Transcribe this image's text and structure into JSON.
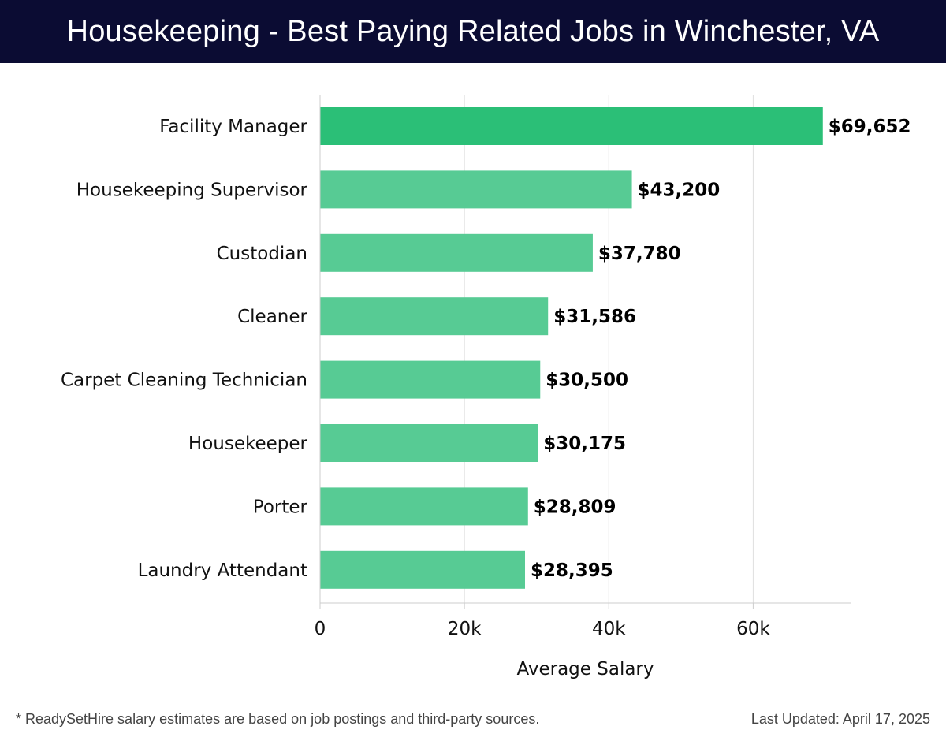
{
  "header": {
    "title": "Housekeeping - Best Paying Related Jobs in Winchester, VA"
  },
  "chart_data": {
    "type": "bar",
    "orientation": "horizontal",
    "categories": [
      "Facility Manager",
      "Housekeeping Supervisor",
      "Custodian",
      "Cleaner",
      "Carpet Cleaning Technician",
      "Housekeeper",
      "Porter",
      "Laundry Attendant"
    ],
    "values": [
      69652,
      43200,
      37780,
      31586,
      30500,
      30175,
      28809,
      28395
    ],
    "value_labels": [
      "$69,652",
      "$43,200",
      "$37,780",
      "$31,586",
      "$30,500",
      "$30,175",
      "$28,809",
      "$28,395"
    ],
    "xlabel": "Average Salary",
    "ylabel": "",
    "xlim": [
      0,
      73500
    ],
    "x_ticks": [
      0,
      20000,
      40000,
      60000
    ],
    "x_tick_labels": [
      "0",
      "20k",
      "40k",
      "60k"
    ],
    "grid": "vertical",
    "colors": {
      "highlight": "#2bbf77",
      "bar": "#57cb94",
      "grid": "#dedede",
      "axis": "#cccccc"
    }
  },
  "footer": {
    "note": "* ReadySetHire salary estimates are based on job postings and third-party sources.",
    "updated": "Last Updated: April 17, 2025"
  }
}
